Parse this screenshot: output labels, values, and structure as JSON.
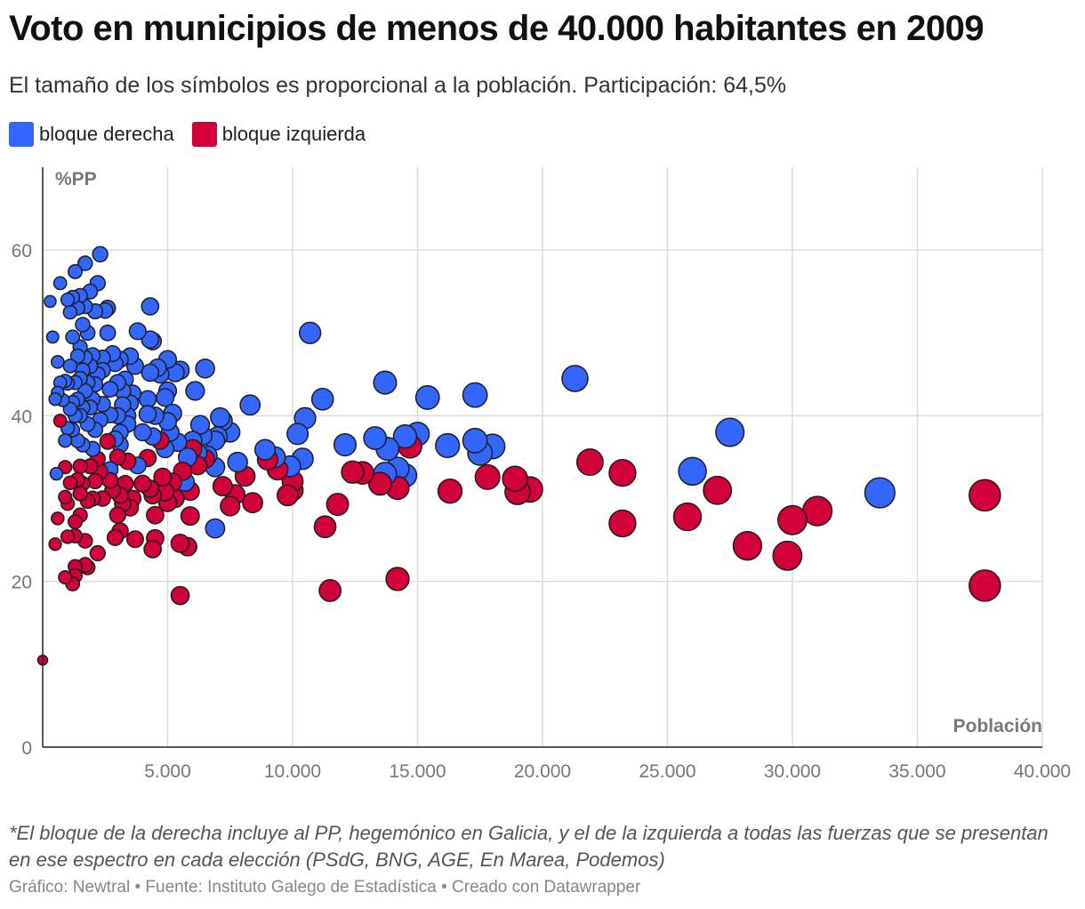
{
  "header": {
    "title": "Voto en municipios de menos de 40.000 habitantes en 2009",
    "subtitle": "El tamaño de los símbolos es proporcional a la población. Participación: 64,5%"
  },
  "footer": {
    "note": "*El bloque de la derecha incluye al PP, hegemónico en Galicia, y el de la izquierda a todas las fuerzas que se presentan en ese espectro en cada elección (PSdG, BNG, AGE, En Marea, Podemos)",
    "credits": "Gráfico: Newtral • Fuente: Instituto Galego de Estadística • Creado con Datawrapper"
  },
  "colors": {
    "derecha": "#3366ff",
    "izquierda": "#d10038",
    "stroke": "#1e1e1e",
    "grid": "#dcdcdc"
  },
  "chart_data": {
    "type": "scatter",
    "title": "Voto en municipios de menos de 40.000 habitantes en 2009",
    "xlabel": "Población",
    "ylabel": "%PP",
    "xlim": [
      0,
      40000
    ],
    "ylim": [
      0,
      70
    ],
    "xticks": [
      5000,
      10000,
      15000,
      20000,
      25000,
      30000,
      35000,
      40000
    ],
    "xtick_labels": [
      "5.000",
      "10.000",
      "15.000",
      "20.000",
      "25.000",
      "30.000",
      "35.000",
      "40.000"
    ],
    "yticks": [
      0,
      20,
      40,
      60
    ],
    "ytick_labels": [
      "0",
      "20",
      "40",
      "60"
    ],
    "grid": true,
    "legend_position": "top-left",
    "series": [
      {
        "name": "bloque derecha",
        "points": [
          [
            33500,
            30.7
          ],
          [
            27500,
            38.0
          ],
          [
            26000,
            33.3
          ],
          [
            21300,
            44.5
          ],
          [
            18000,
            36.3
          ],
          [
            17500,
            35.5
          ],
          [
            17300,
            37.0
          ],
          [
            17300,
            42.5
          ],
          [
            16200,
            36.4
          ],
          [
            15400,
            42.2
          ],
          [
            15000,
            37.8
          ],
          [
            14500,
            37.5
          ],
          [
            14500,
            32.8
          ],
          [
            14200,
            33.6
          ],
          [
            13800,
            36.0
          ],
          [
            13700,
            44.0
          ],
          [
            13700,
            33.0
          ],
          [
            13300,
            37.3
          ],
          [
            12100,
            36.5
          ],
          [
            11200,
            42.0
          ],
          [
            10700,
            50.0
          ],
          [
            10500,
            39.7
          ],
          [
            10400,
            34.8
          ],
          [
            10200,
            37.8
          ],
          [
            9900,
            33.9
          ],
          [
            9300,
            35.0
          ],
          [
            8900,
            35.9
          ],
          [
            8300,
            41.3
          ],
          [
            7800,
            34.4
          ],
          [
            7500,
            38.0
          ],
          [
            7200,
            39.4
          ],
          [
            7100,
            39.8
          ],
          [
            7000,
            37.5
          ],
          [
            6900,
            37.0
          ],
          [
            6900,
            33.8
          ],
          [
            6900,
            26.4
          ],
          [
            6600,
            35.2
          ],
          [
            6500,
            45.7
          ],
          [
            6400,
            37.6
          ],
          [
            6300,
            38.9
          ],
          [
            6200,
            35.5
          ],
          [
            6100,
            43.0
          ],
          [
            6000,
            37.0
          ],
          [
            5800,
            35.0
          ],
          [
            5700,
            32.0
          ],
          [
            5500,
            45.5
          ],
          [
            5400,
            36.8
          ],
          [
            5300,
            45.2
          ],
          [
            5200,
            40.3
          ],
          [
            5100,
            38.0
          ],
          [
            5000,
            46.8
          ],
          [
            5000,
            43.0
          ],
          [
            5000,
            39.3
          ],
          [
            4900,
            42.2
          ],
          [
            4900,
            36.0
          ],
          [
            4700,
            45.0
          ],
          [
            4600,
            45.8
          ],
          [
            4500,
            40.0
          ],
          [
            4400,
            37.5
          ],
          [
            4400,
            49.0
          ],
          [
            4300,
            45.2
          ],
          [
            4300,
            53.2
          ],
          [
            4300,
            49.2
          ],
          [
            4200,
            42.0
          ],
          [
            4200,
            40.2
          ],
          [
            4000,
            38.0
          ],
          [
            3800,
            34.0
          ],
          [
            3800,
            50.2
          ],
          [
            3700,
            46.0
          ],
          [
            3600,
            42.7
          ],
          [
            3500,
            47.2
          ],
          [
            3500,
            41.5
          ],
          [
            3400,
            40.0
          ],
          [
            3400,
            39.0
          ],
          [
            3300,
            44.4
          ],
          [
            3200,
            43.0
          ],
          [
            3200,
            41.3
          ],
          [
            3100,
            46.8
          ],
          [
            3100,
            38.0
          ],
          [
            3100,
            36.5
          ],
          [
            3000,
            40.0
          ],
          [
            3000,
            44.0
          ],
          [
            2900,
            46.3
          ],
          [
            2900,
            37.2
          ],
          [
            2800,
            47.5
          ],
          [
            2700,
            43.2
          ],
          [
            2700,
            40.1
          ],
          [
            2700,
            33.5
          ],
          [
            2600,
            53.0
          ],
          [
            2600,
            50.0
          ],
          [
            2500,
            52.7
          ],
          [
            2400,
            47.0
          ],
          [
            2400,
            45.5
          ],
          [
            2400,
            41.4
          ],
          [
            2300,
            59.5
          ],
          [
            2300,
            39.5
          ],
          [
            2200,
            56.0
          ],
          [
            2200,
            45.0
          ],
          [
            2100,
            52.6
          ],
          [
            2100,
            43.8
          ],
          [
            2100,
            38.3
          ],
          [
            2000,
            47.3
          ],
          [
            2000,
            42.0
          ],
          [
            2000,
            36.0
          ],
          [
            1900,
            55.0
          ],
          [
            1900,
            46.0
          ],
          [
            1900,
            41.0
          ],
          [
            1800,
            50.0
          ],
          [
            1800,
            44.0
          ],
          [
            1800,
            39.0
          ],
          [
            1700,
            58.4
          ],
          [
            1700,
            53.2
          ],
          [
            1700,
            47.0
          ],
          [
            1700,
            43.0
          ],
          [
            1600,
            51.0
          ],
          [
            1600,
            45.5
          ],
          [
            1600,
            41.0
          ],
          [
            1600,
            36.5
          ],
          [
            1500,
            54.5
          ],
          [
            1500,
            48.3
          ],
          [
            1500,
            44.5
          ],
          [
            1500,
            40.0
          ],
          [
            1400,
            53.0
          ],
          [
            1400,
            47.2
          ],
          [
            1400,
            42.0
          ],
          [
            1400,
            37.0
          ],
          [
            1300,
            57.4
          ],
          [
            1300,
            44.0
          ],
          [
            1300,
            40.0
          ],
          [
            1200,
            54.3
          ],
          [
            1200,
            49.5
          ],
          [
            1200,
            41.6
          ],
          [
            1200,
            38.3
          ],
          [
            1100,
            52.5
          ],
          [
            1100,
            46.0
          ],
          [
            1100,
            40.8
          ],
          [
            1000,
            54.0
          ],
          [
            1000,
            43.9
          ],
          [
            1000,
            38.5
          ],
          [
            900,
            44.2
          ],
          [
            900,
            37.0
          ],
          [
            800,
            41.9
          ],
          [
            700,
            56.0
          ],
          [
            700,
            44.0
          ],
          [
            600,
            46.5
          ],
          [
            600,
            42.8
          ],
          [
            550,
            33.0
          ],
          [
            500,
            42.0
          ],
          [
            400,
            49.5
          ],
          [
            300,
            53.8
          ]
        ]
      },
      {
        "name": "bloque izquierda",
        "points": [
          [
            37700,
            30.4
          ],
          [
            37700,
            19.5
          ],
          [
            31000,
            28.5
          ],
          [
            30000,
            27.4
          ],
          [
            29800,
            23.1
          ],
          [
            28200,
            24.3
          ],
          [
            27000,
            31.0
          ],
          [
            25800,
            27.8
          ],
          [
            23200,
            33.1
          ],
          [
            23200,
            27.0
          ],
          [
            21900,
            34.4
          ],
          [
            19500,
            31.1
          ],
          [
            19000,
            30.8
          ],
          [
            18900,
            32.4
          ],
          [
            17800,
            32.6
          ],
          [
            16300,
            30.9
          ],
          [
            14700,
            36.3
          ],
          [
            14200,
            31.3
          ],
          [
            14200,
            20.3
          ],
          [
            13500,
            31.8
          ],
          [
            12800,
            33.1
          ],
          [
            12400,
            33.2
          ],
          [
            11800,
            29.3
          ],
          [
            11500,
            18.9
          ],
          [
            11300,
            26.6
          ],
          [
            10000,
            31.0
          ],
          [
            10000,
            32.1
          ],
          [
            9800,
            30.4
          ],
          [
            9400,
            33.5
          ],
          [
            9000,
            34.7
          ],
          [
            8400,
            29.5
          ],
          [
            8100,
            32.7
          ],
          [
            7700,
            30.5
          ],
          [
            7500,
            29.1
          ],
          [
            7200,
            31.5
          ],
          [
            6500,
            34.8
          ],
          [
            6200,
            34.0
          ],
          [
            6000,
            36.0
          ],
          [
            5900,
            27.9
          ],
          [
            5900,
            30.9
          ],
          [
            5800,
            24.2
          ],
          [
            5600,
            33.3
          ],
          [
            5500,
            24.6
          ],
          [
            5500,
            18.3
          ],
          [
            5300,
            30.0
          ],
          [
            5200,
            32.0
          ],
          [
            5000,
            29.5
          ],
          [
            4900,
            30.8
          ],
          [
            4800,
            32.6
          ],
          [
            4700,
            37.0
          ],
          [
            4500,
            25.2
          ],
          [
            4500,
            28.0
          ],
          [
            4400,
            30.4
          ],
          [
            4400,
            23.9
          ],
          [
            4300,
            31.2
          ],
          [
            4200,
            34.9
          ],
          [
            4000,
            31.8
          ],
          [
            3700,
            25.1
          ],
          [
            3600,
            30.0
          ],
          [
            3500,
            28.9
          ],
          [
            3400,
            34.5
          ],
          [
            3300,
            31.8
          ],
          [
            3200,
            29.4
          ],
          [
            3100,
            30.4
          ],
          [
            3100,
            26.1
          ],
          [
            3000,
            28.0
          ],
          [
            3000,
            35.0
          ],
          [
            2900,
            25.3
          ],
          [
            2800,
            31.0
          ],
          [
            2700,
            32.2
          ],
          [
            2600,
            36.9
          ],
          [
            2400,
            30.0
          ],
          [
            2300,
            33.3
          ],
          [
            2200,
            34.8
          ],
          [
            2200,
            23.4
          ],
          [
            2100,
            32.1
          ],
          [
            2000,
            30.0
          ],
          [
            1900,
            33.9
          ],
          [
            1800,
            29.7
          ],
          [
            1800,
            21.7
          ],
          [
            1700,
            22.0
          ],
          [
            1700,
            24.9
          ],
          [
            1600,
            31.8
          ],
          [
            1500,
            33.9
          ],
          [
            1500,
            28.0
          ],
          [
            1500,
            30.6
          ],
          [
            1400,
            32.3
          ],
          [
            1300,
            27.2
          ],
          [
            1300,
            25.5
          ],
          [
            1300,
            21.8
          ],
          [
            1300,
            20.7
          ],
          [
            1200,
            19.7
          ],
          [
            1100,
            31.9
          ],
          [
            1000,
            29.4
          ],
          [
            1000,
            25.4
          ],
          [
            900,
            33.8
          ],
          [
            900,
            30.2
          ],
          [
            900,
            20.5
          ],
          [
            700,
            39.4
          ],
          [
            600,
            27.6
          ],
          [
            500,
            24.5
          ],
          [
            0,
            10.5
          ]
        ]
      }
    ]
  }
}
